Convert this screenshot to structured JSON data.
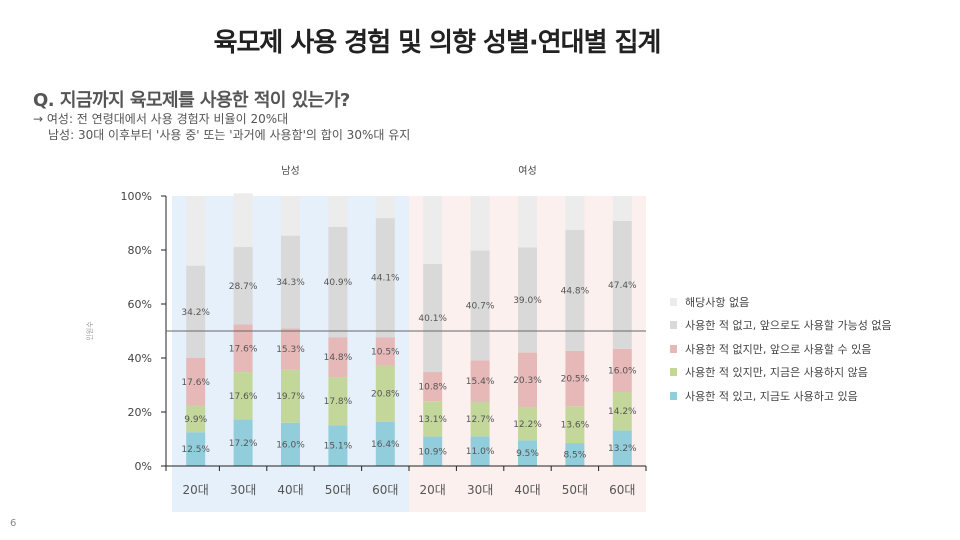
{
  "title": "육모제 사용 경험 및 의향 성별·연대별 집계",
  "question": "Q. 지금까지 육모제를 사용한 적이 있는가?",
  "notes": [
    "→ 여성: 전 연령대에서 사용 경험자 비율이 20%대",
    "남성: 30대 이후부터 '사용 중' 또는 '과거에 사용함'의 합이 30%대 유지"
  ],
  "page_number": "6",
  "chart_data": {
    "type": "bar",
    "stacked": true,
    "ylabel": "인원수",
    "ylim": [
      0,
      100
    ],
    "yticks": [
      "0%",
      "20%",
      "40%",
      "60%",
      "80%",
      "100%"
    ],
    "ytick_values": [
      0,
      20,
      40,
      60,
      80,
      100
    ],
    "reference_line": 50,
    "groups": [
      {
        "name": "남성",
        "background": "#e6f0fa"
      },
      {
        "name": "여성",
        "background": "#fcf0ee"
      }
    ],
    "categories": [
      "20대",
      "30대",
      "40대",
      "50대",
      "60대",
      "20대",
      "30대",
      "40대",
      "50대",
      "60대"
    ],
    "category_groups": [
      0,
      0,
      0,
      0,
      0,
      1,
      1,
      1,
      1,
      1
    ],
    "series": [
      {
        "name": "사용한 적 있고, 지금도 사용하고 있음",
        "color": "#92cddc",
        "values": [
          12.5,
          17.2,
          16.0,
          15.1,
          16.4,
          10.9,
          11.0,
          9.5,
          8.5,
          13.2
        ],
        "labels": [
          "12.5%",
          "17.2%",
          "16.0%",
          "15.1%",
          "16.4%",
          "10.9%",
          "11.0%",
          "9.5%",
          "8.5%",
          "13.2%"
        ]
      },
      {
        "name": "사용한 적 있지만, 지금은 사용하지 않음",
        "color": "#c4d79b",
        "values": [
          9.9,
          17.6,
          19.7,
          17.8,
          20.8,
          13.1,
          12.7,
          12.2,
          13.6,
          14.2
        ],
        "labels": [
          "9.9%",
          "17.6%",
          "19.7%",
          "17.8%",
          "20.8%",
          "13.1%",
          "12.7%",
          "12.2%",
          "13.6%",
          "14.2%"
        ]
      },
      {
        "name": "사용한 적 없지만, 앞으로 사용할 수 있음",
        "color": "#e6b9b8",
        "values": [
          17.6,
          17.6,
          15.3,
          14.8,
          10.5,
          10.8,
          15.4,
          20.3,
          20.5,
          16.0
        ],
        "labels": [
          "17.6%",
          "17.6%",
          "15.3%",
          "14.8%",
          "10.5%",
          "10.8%",
          "15.4%",
          "20.3%",
          "20.5%",
          "16.0%"
        ]
      },
      {
        "name": "사용한 적 없고, 앞으로도 사용할 가능성 없음",
        "color": "#d9d9d9",
        "values": [
          34.2,
          28.7,
          34.3,
          40.9,
          44.1,
          40.1,
          40.7,
          39.0,
          44.8,
          47.4
        ],
        "labels": [
          "34.2%",
          "28.7%",
          "34.3%",
          "40.9%",
          "44.1%",
          "40.1%",
          "40.7%",
          "39.0%",
          "44.8%",
          "47.4%"
        ]
      },
      {
        "name": "해당사항 없음",
        "color": "#ececec",
        "values": [
          25.8,
          19.9,
          14.7,
          11.4,
          8.2,
          25.1,
          20.2,
          19.0,
          12.6,
          9.2
        ],
        "labels": []
      }
    ]
  }
}
